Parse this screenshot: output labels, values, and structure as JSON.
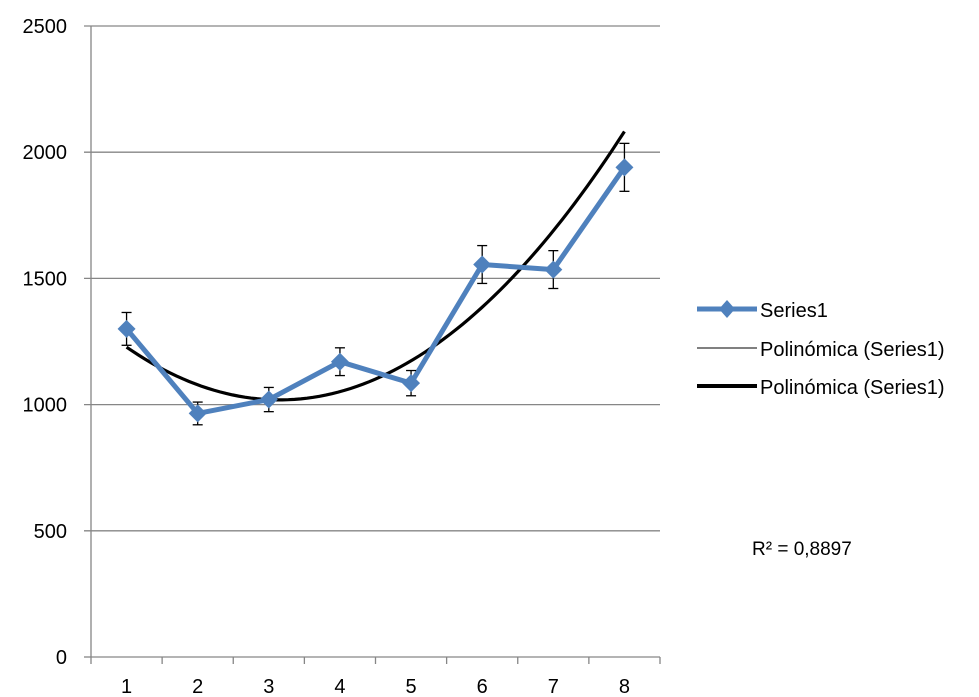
{
  "chart_data": {
    "type": "line",
    "x": [
      1,
      2,
      3,
      4,
      5,
      6,
      7,
      8
    ],
    "series": [
      {
        "name": "Series1",
        "values": [
          1300,
          965,
          1020,
          1170,
          1085,
          1555,
          1535,
          1940
        ],
        "error": [
          65,
          45,
          48,
          55,
          50,
          75,
          75,
          95
        ],
        "color": "#4F81BD",
        "marker": "diamond"
      }
    ],
    "trendline": {
      "name": "Polinómica (Series1)",
      "kind": "polynomial",
      "order": 2,
      "coefficients": [
        1467.19,
        -284.792,
        45.2083
      ],
      "color": "#000000"
    },
    "legend": {
      "placement": "right",
      "entries": [
        "Series1",
        "Polinómica (Series1)",
        "Polinómica (Series1)"
      ]
    },
    "r2_text": "R² = 0,8897",
    "ylim": [
      0,
      2500
    ],
    "yticks": [
      0,
      500,
      1000,
      1500,
      2000,
      2500
    ],
    "xticks": [
      "1",
      "2",
      "3",
      "4",
      "5",
      "6",
      "7",
      "8"
    ],
    "grid": "horizontal",
    "title": "",
    "xlabel": "",
    "ylabel": ""
  }
}
